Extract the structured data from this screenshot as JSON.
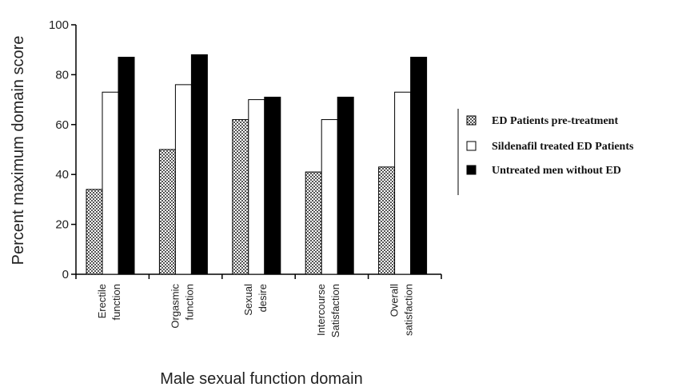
{
  "chart_data": {
    "type": "bar",
    "title": "",
    "xlabel": "Male sexual function domain",
    "ylabel": "Percent maximum domain score",
    "ylim": [
      0,
      100
    ],
    "yticks": [
      0,
      20,
      40,
      60,
      80,
      100
    ],
    "categories": [
      [
        "Erectile",
        "function"
      ],
      [
        "Orgasmic",
        "function"
      ],
      [
        "Sexual",
        "desire"
      ],
      [
        "Intercourse",
        "Satisfaction"
      ],
      [
        "Overall",
        "satisfaction"
      ]
    ],
    "series": [
      {
        "name": "ED Patients pre-treatment",
        "fill": "pattern",
        "values": [
          34,
          50,
          62,
          41,
          43
        ]
      },
      {
        "name": "Sildenafil treated ED Patients",
        "fill": "#ffffff",
        "values": [
          73,
          76,
          70,
          62,
          73
        ]
      },
      {
        "name": "Untreated men without ED",
        "fill": "#000000",
        "values": [
          87,
          88,
          71,
          71,
          87
        ]
      }
    ],
    "legend_position": "right",
    "grid": false
  }
}
